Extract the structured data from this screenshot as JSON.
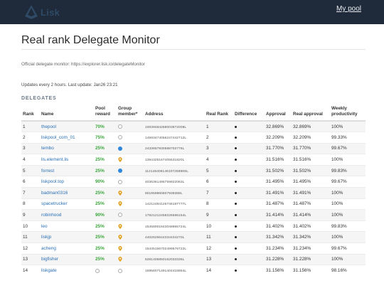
{
  "nav": {
    "logo_text": "Lisk",
    "mypool_label": "My pool"
  },
  "page": {
    "title": "Real rank Delegate Monitor",
    "official": "Official delegate monitor: https://explorer.lisk.io/delegateMonitor",
    "updates": "Updates every 2 hours. Last update: Jan26 23:21",
    "section": "DELEGATES"
  },
  "table": {
    "headers": {
      "rank": "Rank",
      "name": "Name",
      "pool_reward": "Pool reward",
      "group_member": "Group member*",
      "address": "Address",
      "real_rank": "Real Rank",
      "difference": "Difference",
      "approval": "Approval",
      "real_approval": "Real approval",
      "weekly": "Weekly productivity"
    },
    "rows": [
      {
        "rank": "1",
        "name": "thepool",
        "reward": "70%",
        "member": "empty",
        "address": "10039484268003872009L",
        "real_rank": "1",
        "approval": "32.869%",
        "real_approval": "32.869%",
        "weekly": "100%"
      },
      {
        "rank": "2",
        "name": "liskpool_com_01",
        "reward": "75%",
        "member": "empty",
        "address": "14593474056247442712L",
        "real_rank": "2",
        "approval": "32.209%",
        "real_approval": "32.209%",
        "weekly": "99.33%"
      },
      {
        "rank": "3",
        "name": "tembo",
        "reward": "25%",
        "member": "blue",
        "address": "2433657930588702776L",
        "real_rank": "3",
        "approval": "31.770%",
        "real_approval": "31.770%",
        "weekly": "99.67%"
      },
      {
        "rank": "4",
        "name": "lis.element.lis",
        "reward": "25%",
        "member": "pin",
        "address": "1394325167405531820L",
        "real_rank": "4",
        "approval": "31.516%",
        "real_approval": "31.516%",
        "weekly": "100%"
      },
      {
        "rank": "5",
        "name": "forrest",
        "reward": "25%",
        "member": "blue",
        "address": "11414640614610725898SL",
        "real_rank": "5",
        "approval": "31.502%",
        "real_approval": "31.502%",
        "weekly": "99.83%"
      },
      {
        "rank": "6",
        "name": "liskpool.top",
        "reward": "90%",
        "member": "empty",
        "address": "4036361495759922063L",
        "real_rank": "6",
        "approval": "31.495%",
        "real_approval": "31.495%",
        "weekly": "99.67%"
      },
      {
        "rank": "7",
        "name": "badman0316",
        "reward": "25%",
        "member": "pin",
        "address": "801959860607939388L",
        "real_rank": "7",
        "approval": "31.491%",
        "real_approval": "31.491%",
        "weekly": "100%"
      },
      {
        "rank": "8",
        "name": "spacetrucker",
        "reward": "25%",
        "member": "pin",
        "address": "14212484126746187777L",
        "real_rank": "8",
        "approval": "31.487%",
        "real_approval": "31.487%",
        "weekly": "100%"
      },
      {
        "rank": "9",
        "name": "robinhood",
        "reward": "90%",
        "member": "empty",
        "address": "17621212458226596154L",
        "real_rank": "9",
        "approval": "31.414%",
        "real_approval": "31.414%",
        "weekly": "100%"
      },
      {
        "rank": "10",
        "name": "leo",
        "reward": "25%",
        "member": "pin",
        "address": "15458001843048965724L",
        "real_rank": "10",
        "approval": "31.402%",
        "real_approval": "31.402%",
        "weekly": "99.83%"
      },
      {
        "rank": "11",
        "name": "liskjp",
        "reward": "25%",
        "member": "pin",
        "address": "4402625644334434270L",
        "real_rank": "11",
        "approval": "31.342%",
        "real_approval": "31.342%",
        "weekly": "100%"
      },
      {
        "rank": "12",
        "name": "acheng",
        "reward": "25%",
        "member": "pin",
        "address": "15435156702499576722L",
        "real_rank": "12",
        "approval": "31.234%",
        "real_approval": "31.234%",
        "weekly": "99.67%"
      },
      {
        "rank": "13",
        "name": "bigfisher",
        "reward": "25%",
        "member": "pin",
        "address": "6281405850162033335L",
        "real_rank": "13",
        "approval": "31.228%",
        "real_approval": "31.228%",
        "weekly": "100%"
      },
      {
        "rank": "14",
        "name": "liskgate",
        "reward": "",
        "member": "empty",
        "address": "16956071491404416854L",
        "real_rank": "14",
        "approval": "31.156%",
        "real_approval": "31.156%",
        "weekly": "98.16%"
      }
    ]
  },
  "colors": {
    "topbar": "#1f2b3a",
    "link": "#2a6fb4",
    "reward": "#3aa63a",
    "member_blue": "#2e86de",
    "member_pin": "#e0a020"
  }
}
